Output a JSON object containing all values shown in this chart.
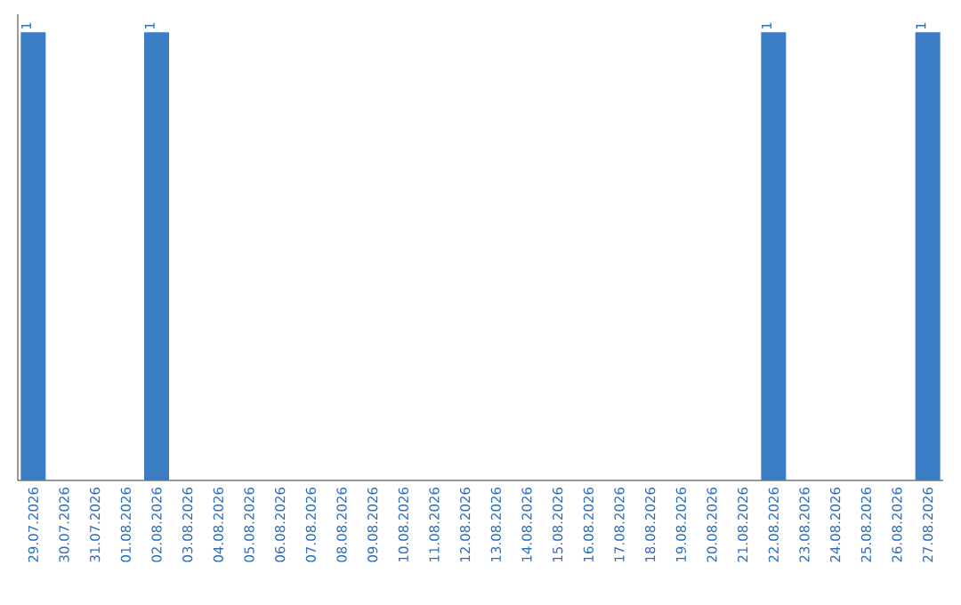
{
  "chart_data": {
    "type": "bar",
    "categories": [
      "29.07.2026",
      "30.07.2026",
      "31.07.2026",
      "01.08.2026",
      "02.08.2026",
      "03.08.2026",
      "04.08.2026",
      "05.08.2026",
      "06.08.2026",
      "07.08.2026",
      "08.08.2026",
      "09.08.2026",
      "10.08.2026",
      "11.08.2026",
      "12.08.2026",
      "13.08.2026",
      "14.08.2026",
      "15.08.2026",
      "16.08.2026",
      "17.08.2026",
      "18.08.2026",
      "19.08.2026",
      "20.08.2026",
      "21.08.2026",
      "22.08.2026",
      "23.08.2026",
      "24.08.2026",
      "25.08.2026",
      "26.08.2026",
      "27.08.2026"
    ],
    "values": [
      1,
      0,
      0,
      0,
      1,
      0,
      0,
      0,
      0,
      0,
      0,
      0,
      0,
      0,
      0,
      0,
      0,
      0,
      0,
      0,
      0,
      0,
      0,
      0,
      1,
      0,
      0,
      0,
      0,
      1
    ],
    "value_labels": [
      "1",
      null,
      null,
      null,
      "1",
      null,
      null,
      null,
      null,
      null,
      null,
      null,
      null,
      null,
      null,
      null,
      null,
      null,
      null,
      null,
      null,
      null,
      null,
      null,
      "1",
      null,
      null,
      null,
      null,
      "1"
    ],
    "color": "#3b7dc4",
    "tick_labels": "x"
  }
}
